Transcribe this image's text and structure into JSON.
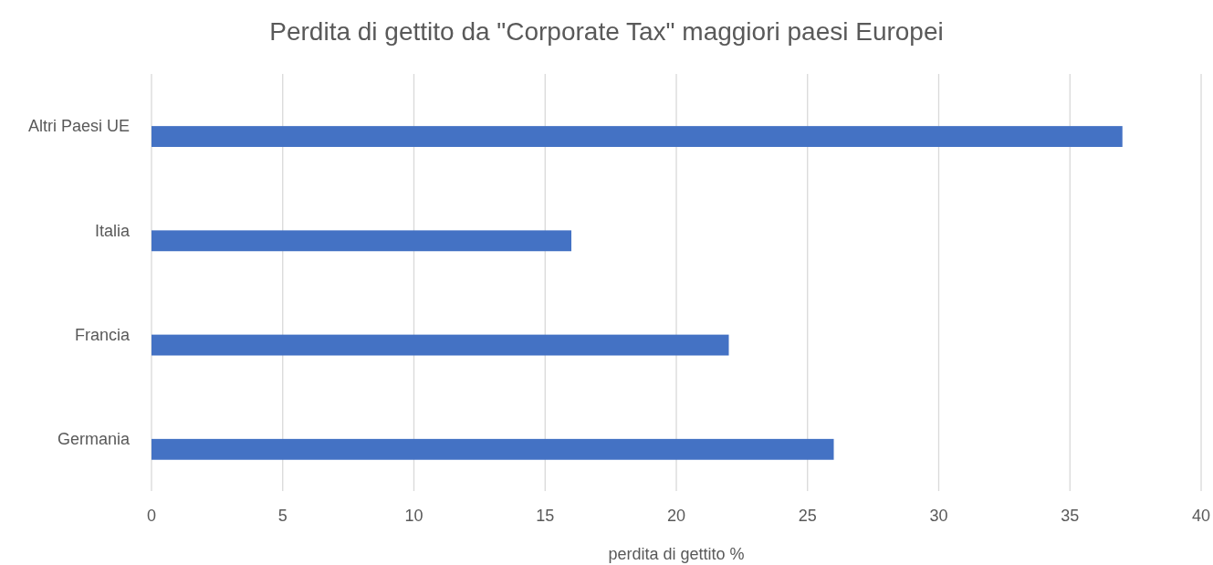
{
  "chart_data": {
    "type": "bar",
    "orientation": "horizontal",
    "title": "Perdita di gettito da \"Corporate Tax\" maggiori paesi Europei",
    "xlabel": "perdita di gettito %",
    "categories": [
      "Altri Paesi UE",
      "Italia",
      "Francia",
      "Germania"
    ],
    "values": [
      37,
      16,
      22,
      26
    ],
    "color": "#4472c4",
    "xlim": [
      0,
      40
    ],
    "xticks": [
      0,
      5,
      10,
      15,
      20,
      25,
      30,
      35,
      40
    ],
    "grid": "x"
  }
}
